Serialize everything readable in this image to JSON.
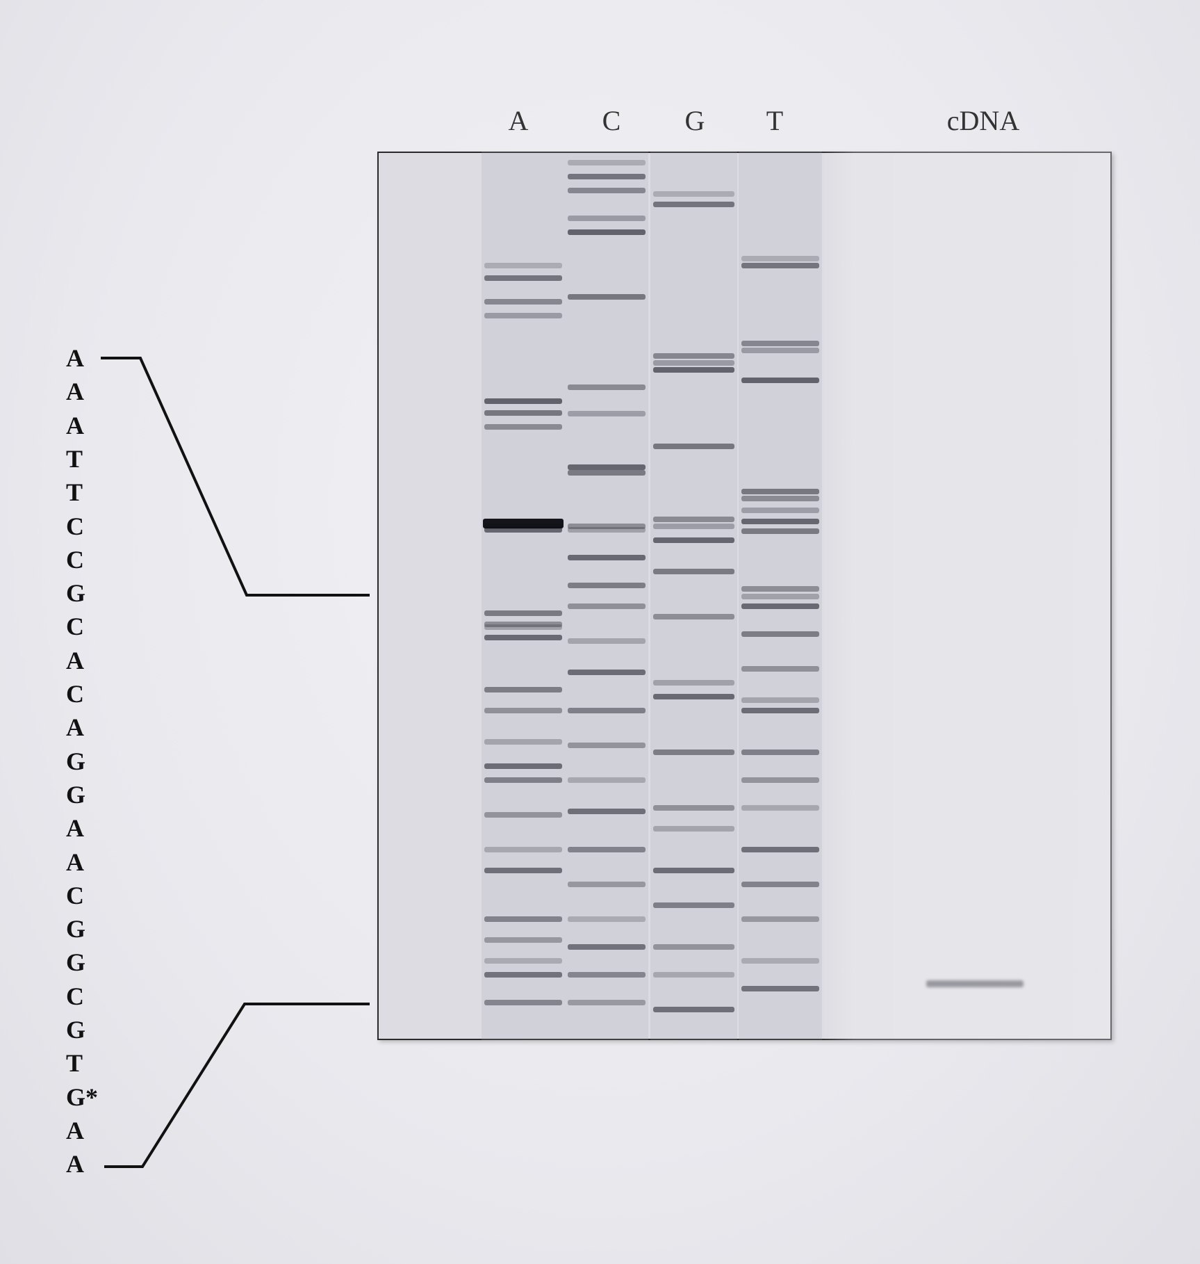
{
  "lane_labels": [
    "A",
    "C",
    "G",
    "T",
    "cDNA"
  ],
  "sequence": [
    "A",
    "A",
    "A",
    "T",
    "T",
    "C",
    "C",
    "G",
    "C",
    "A",
    "C",
    "A",
    "G",
    "G",
    "A",
    "A",
    "C",
    "G",
    "G",
    "C",
    "G",
    "T",
    "G*",
    "A",
    "A"
  ]
}
